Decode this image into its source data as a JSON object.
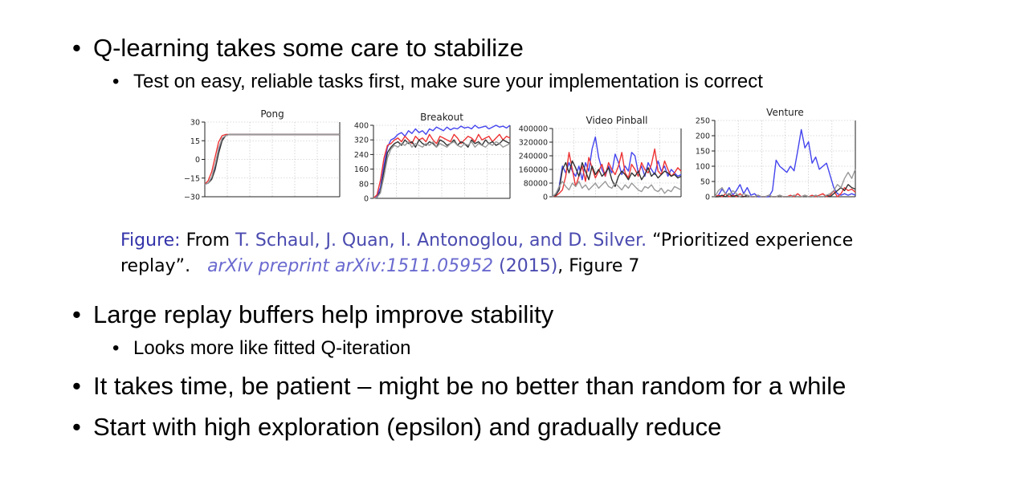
{
  "bullets_top": {
    "b1": "Q-learning takes some care to stabilize",
    "b1_sub": "Test on easy, reliable tasks first, make sure your implementation is correct"
  },
  "figure": {
    "caption_label": "Figure:",
    "caption_from": "From",
    "caption_authors": "T. Schaul, J. Quan, I. Antonoglou, and D. Silver.",
    "caption_title": "“Prioritized experience",
    "caption_title2": "replay”.",
    "caption_venue": "arXiv preprint arXiv:1511.05952",
    "caption_year": "(2015)",
    "caption_fig": ", Figure 7"
  },
  "bullets_bottom": {
    "b2": "Large replay buffers help improve stability",
    "b2_sub": "Looks more like fitted Q-iteration",
    "b3": "It takes time, be patient – might be no better than random for a while",
    "b4": "Start with high exploration (epsilon) and gradually reduce"
  },
  "series_colors": {
    "blue": "#4444ee",
    "red": "#ee3333",
    "black": "#333333",
    "gray": "#999999"
  },
  "chart_data": [
    {
      "type": "line",
      "title": "Pong",
      "ylim": [
        -30,
        30
      ],
      "yticks": [
        "30",
        "15",
        "0",
        "−15",
        "−30"
      ],
      "yticks_values": [
        30,
        15,
        0,
        -15,
        -30
      ],
      "grid": true,
      "series": [
        {
          "color": "blue",
          "values": [
            -20,
            -19,
            -15,
            -5,
            8,
            16,
            19,
            20,
            20,
            20,
            20,
            20,
            20,
            20,
            20,
            20,
            20,
            20,
            20,
            20,
            20,
            20,
            20,
            20,
            20,
            20,
            20,
            20,
            20,
            20,
            20,
            20,
            20,
            20,
            20,
            20,
            20,
            20,
            20,
            20
          ]
        },
        {
          "color": "red",
          "values": [
            -20,
            -17,
            -10,
            2,
            14,
            19,
            20,
            20,
            20,
            20,
            20,
            20,
            20,
            20,
            20,
            20,
            20,
            20,
            20,
            20,
            20,
            20,
            20,
            20,
            20,
            20,
            20,
            20,
            20,
            20,
            20,
            20,
            20,
            20,
            20,
            20,
            20,
            20,
            20,
            20
          ]
        },
        {
          "color": "black",
          "values": [
            -20,
            -19,
            -16,
            -8,
            5,
            15,
            19,
            20,
            20,
            20,
            20,
            20,
            20,
            20,
            20,
            20,
            20,
            20,
            20,
            20,
            20,
            20,
            20,
            20,
            20,
            20,
            20,
            20,
            20,
            20,
            20,
            20,
            20,
            20,
            20,
            20,
            20,
            20,
            20,
            20
          ]
        },
        {
          "color": "gray",
          "values": [
            -20,
            -19,
            -14,
            -4,
            9,
            17,
            19,
            20,
            20,
            20,
            20,
            20,
            20,
            20,
            20,
            20,
            20,
            20,
            20,
            20,
            20,
            20,
            20,
            20,
            20,
            20,
            20,
            20,
            20,
            20,
            20,
            20,
            20,
            20,
            20,
            20,
            20,
            20,
            20,
            20
          ]
        }
      ]
    },
    {
      "type": "line",
      "title": "Breakout",
      "ylim": [
        0,
        400
      ],
      "yticks": [
        "400",
        "320",
        "240",
        "160",
        "80",
        "0"
      ],
      "yticks_values": [
        400,
        320,
        240,
        160,
        80,
        0
      ],
      "grid": true,
      "series": [
        {
          "color": "blue",
          "values": [
            0,
            10,
            60,
            180,
            280,
            320,
            330,
            350,
            360,
            340,
            370,
            355,
            380,
            360,
            370,
            350,
            380,
            370,
            390,
            380,
            370,
            390,
            375,
            385,
            380,
            395,
            385,
            390,
            380,
            400,
            385,
            390,
            395,
            380,
            390,
            400,
            390,
            395,
            385,
            400
          ]
        },
        {
          "color": "red",
          "values": [
            0,
            20,
            100,
            220,
            290,
            300,
            320,
            330,
            310,
            340,
            320,
            300,
            340,
            320,
            330,
            310,
            350,
            320,
            300,
            340,
            330,
            320,
            310,
            350,
            330,
            300,
            320,
            340,
            330,
            310,
            350,
            320,
            330,
            340,
            310,
            330,
            350,
            320,
            340,
            330
          ]
        },
        {
          "color": "black",
          "values": [
            0,
            5,
            40,
            150,
            250,
            280,
            300,
            310,
            290,
            320,
            300,
            310,
            280,
            320,
            300,
            290,
            310,
            300,
            280,
            320,
            310,
            290,
            300,
            320,
            290,
            310,
            300,
            280,
            320,
            300,
            310,
            290,
            320,
            300,
            310,
            290,
            300,
            320,
            310,
            300
          ]
        },
        {
          "color": "gray",
          "values": [
            0,
            5,
            30,
            120,
            220,
            270,
            290,
            280,
            300,
            290,
            310,
            280,
            300,
            290,
            280,
            300,
            290,
            310,
            280,
            300,
            290,
            280,
            300,
            310,
            290,
            280,
            300,
            290,
            310,
            280,
            300,
            290,
            280,
            300,
            290,
            310,
            300,
            280,
            290,
            300
          ]
        }
      ]
    },
    {
      "type": "line",
      "title": "Video Pinball",
      "ylim": [
        0,
        400000
      ],
      "yticks": [
        "400000",
        "320000",
        "240000",
        "160000",
        "80000",
        "0"
      ],
      "yticks_values": [
        400000,
        320000,
        240000,
        160000,
        80000,
        0
      ],
      "grid": true,
      "series": [
        {
          "color": "blue",
          "values": [
            0,
            10000,
            60000,
            180000,
            140000,
            200000,
            150000,
            120000,
            180000,
            100000,
            200000,
            150000,
            280000,
            350000,
            230000,
            160000,
            120000,
            180000,
            140000,
            250000,
            200000,
            130000,
            180000,
            150000,
            260000,
            240000,
            140000,
            180000,
            120000,
            200000,
            160000,
            130000,
            210000,
            150000,
            180000,
            120000,
            160000,
            140000,
            120000,
            130000
          ]
        },
        {
          "color": "red",
          "values": [
            0,
            5000,
            20000,
            40000,
            120000,
            260000,
            160000,
            60000,
            120000,
            180000,
            90000,
            230000,
            170000,
            110000,
            150000,
            190000,
            120000,
            200000,
            160000,
            130000,
            180000,
            260000,
            140000,
            110000,
            190000,
            160000,
            120000,
            200000,
            160000,
            140000,
            190000,
            280000,
            150000,
            130000,
            210000,
            160000,
            120000,
            140000,
            170000,
            150000
          ]
        },
        {
          "color": "black",
          "values": [
            0,
            10000,
            40000,
            160000,
            200000,
            140000,
            210000,
            170000,
            120000,
            200000,
            150000,
            100000,
            180000,
            130000,
            160000,
            120000,
            140000,
            170000,
            100000,
            60000,
            120000,
            150000,
            130000,
            100000,
            140000,
            120000,
            150000,
            100000,
            130000,
            170000,
            120000,
            140000,
            110000,
            130000,
            150000,
            140000,
            120000,
            130000,
            110000,
            120000
          ]
        },
        {
          "color": "gray",
          "values": [
            0,
            20000,
            60000,
            90000,
            60000,
            40000,
            80000,
            60000,
            90000,
            50000,
            70000,
            40000,
            60000,
            80000,
            50000,
            70000,
            90000,
            60000,
            50000,
            80000,
            60000,
            40000,
            70000,
            50000,
            80000,
            60000,
            40000,
            30000,
            60000,
            50000,
            70000,
            40000,
            30000,
            50000,
            20000,
            40000,
            30000,
            60000,
            50000,
            40000
          ]
        }
      ]
    },
    {
      "type": "line",
      "title": "Venture",
      "ylim": [
        0,
        250
      ],
      "yticks": [
        "250",
        "200",
        "150",
        "100",
        "50",
        "0"
      ],
      "yticks_values": [
        250,
        200,
        150,
        100,
        50,
        0
      ],
      "grid": true,
      "series": [
        {
          "color": "blue",
          "values": [
            0,
            5,
            25,
            10,
            30,
            5,
            20,
            40,
            10,
            30,
            5,
            10,
            0,
            0,
            0,
            0,
            20,
            120,
            100,
            90,
            80,
            100,
            85,
            150,
            220,
            160,
            180,
            110,
            130,
            90,
            100,
            110,
            70,
            30,
            10,
            5,
            10,
            5,
            10,
            5
          ]
        },
        {
          "color": "red",
          "values": [
            0,
            5,
            0,
            10,
            0,
            5,
            0,
            10,
            0,
            5,
            0,
            0,
            5,
            0,
            0,
            5,
            0,
            0,
            5,
            0,
            0,
            5,
            0,
            10,
            0,
            5,
            0,
            5,
            0,
            5,
            10,
            0,
            5,
            20,
            0,
            10,
            30,
            20,
            25,
            15
          ]
        },
        {
          "color": "black",
          "values": [
            0,
            0,
            5,
            0,
            10,
            0,
            5,
            0,
            0,
            5,
            0,
            0,
            5,
            0,
            0,
            5,
            0,
            0,
            5,
            0,
            0,
            0,
            5,
            0,
            0,
            5,
            0,
            0,
            5,
            0,
            0,
            5,
            0,
            10,
            20,
            30,
            20,
            40,
            30,
            25
          ]
        },
        {
          "color": "gray",
          "values": [
            0,
            20,
            30,
            10,
            5,
            20,
            10,
            0,
            10,
            5,
            0,
            0,
            5,
            0,
            0,
            5,
            0,
            0,
            5,
            0,
            0,
            0,
            5,
            0,
            0,
            5,
            0,
            0,
            5,
            0,
            0,
            5,
            10,
            20,
            40,
            30,
            60,
            80,
            60,
            90
          ]
        }
      ]
    }
  ]
}
